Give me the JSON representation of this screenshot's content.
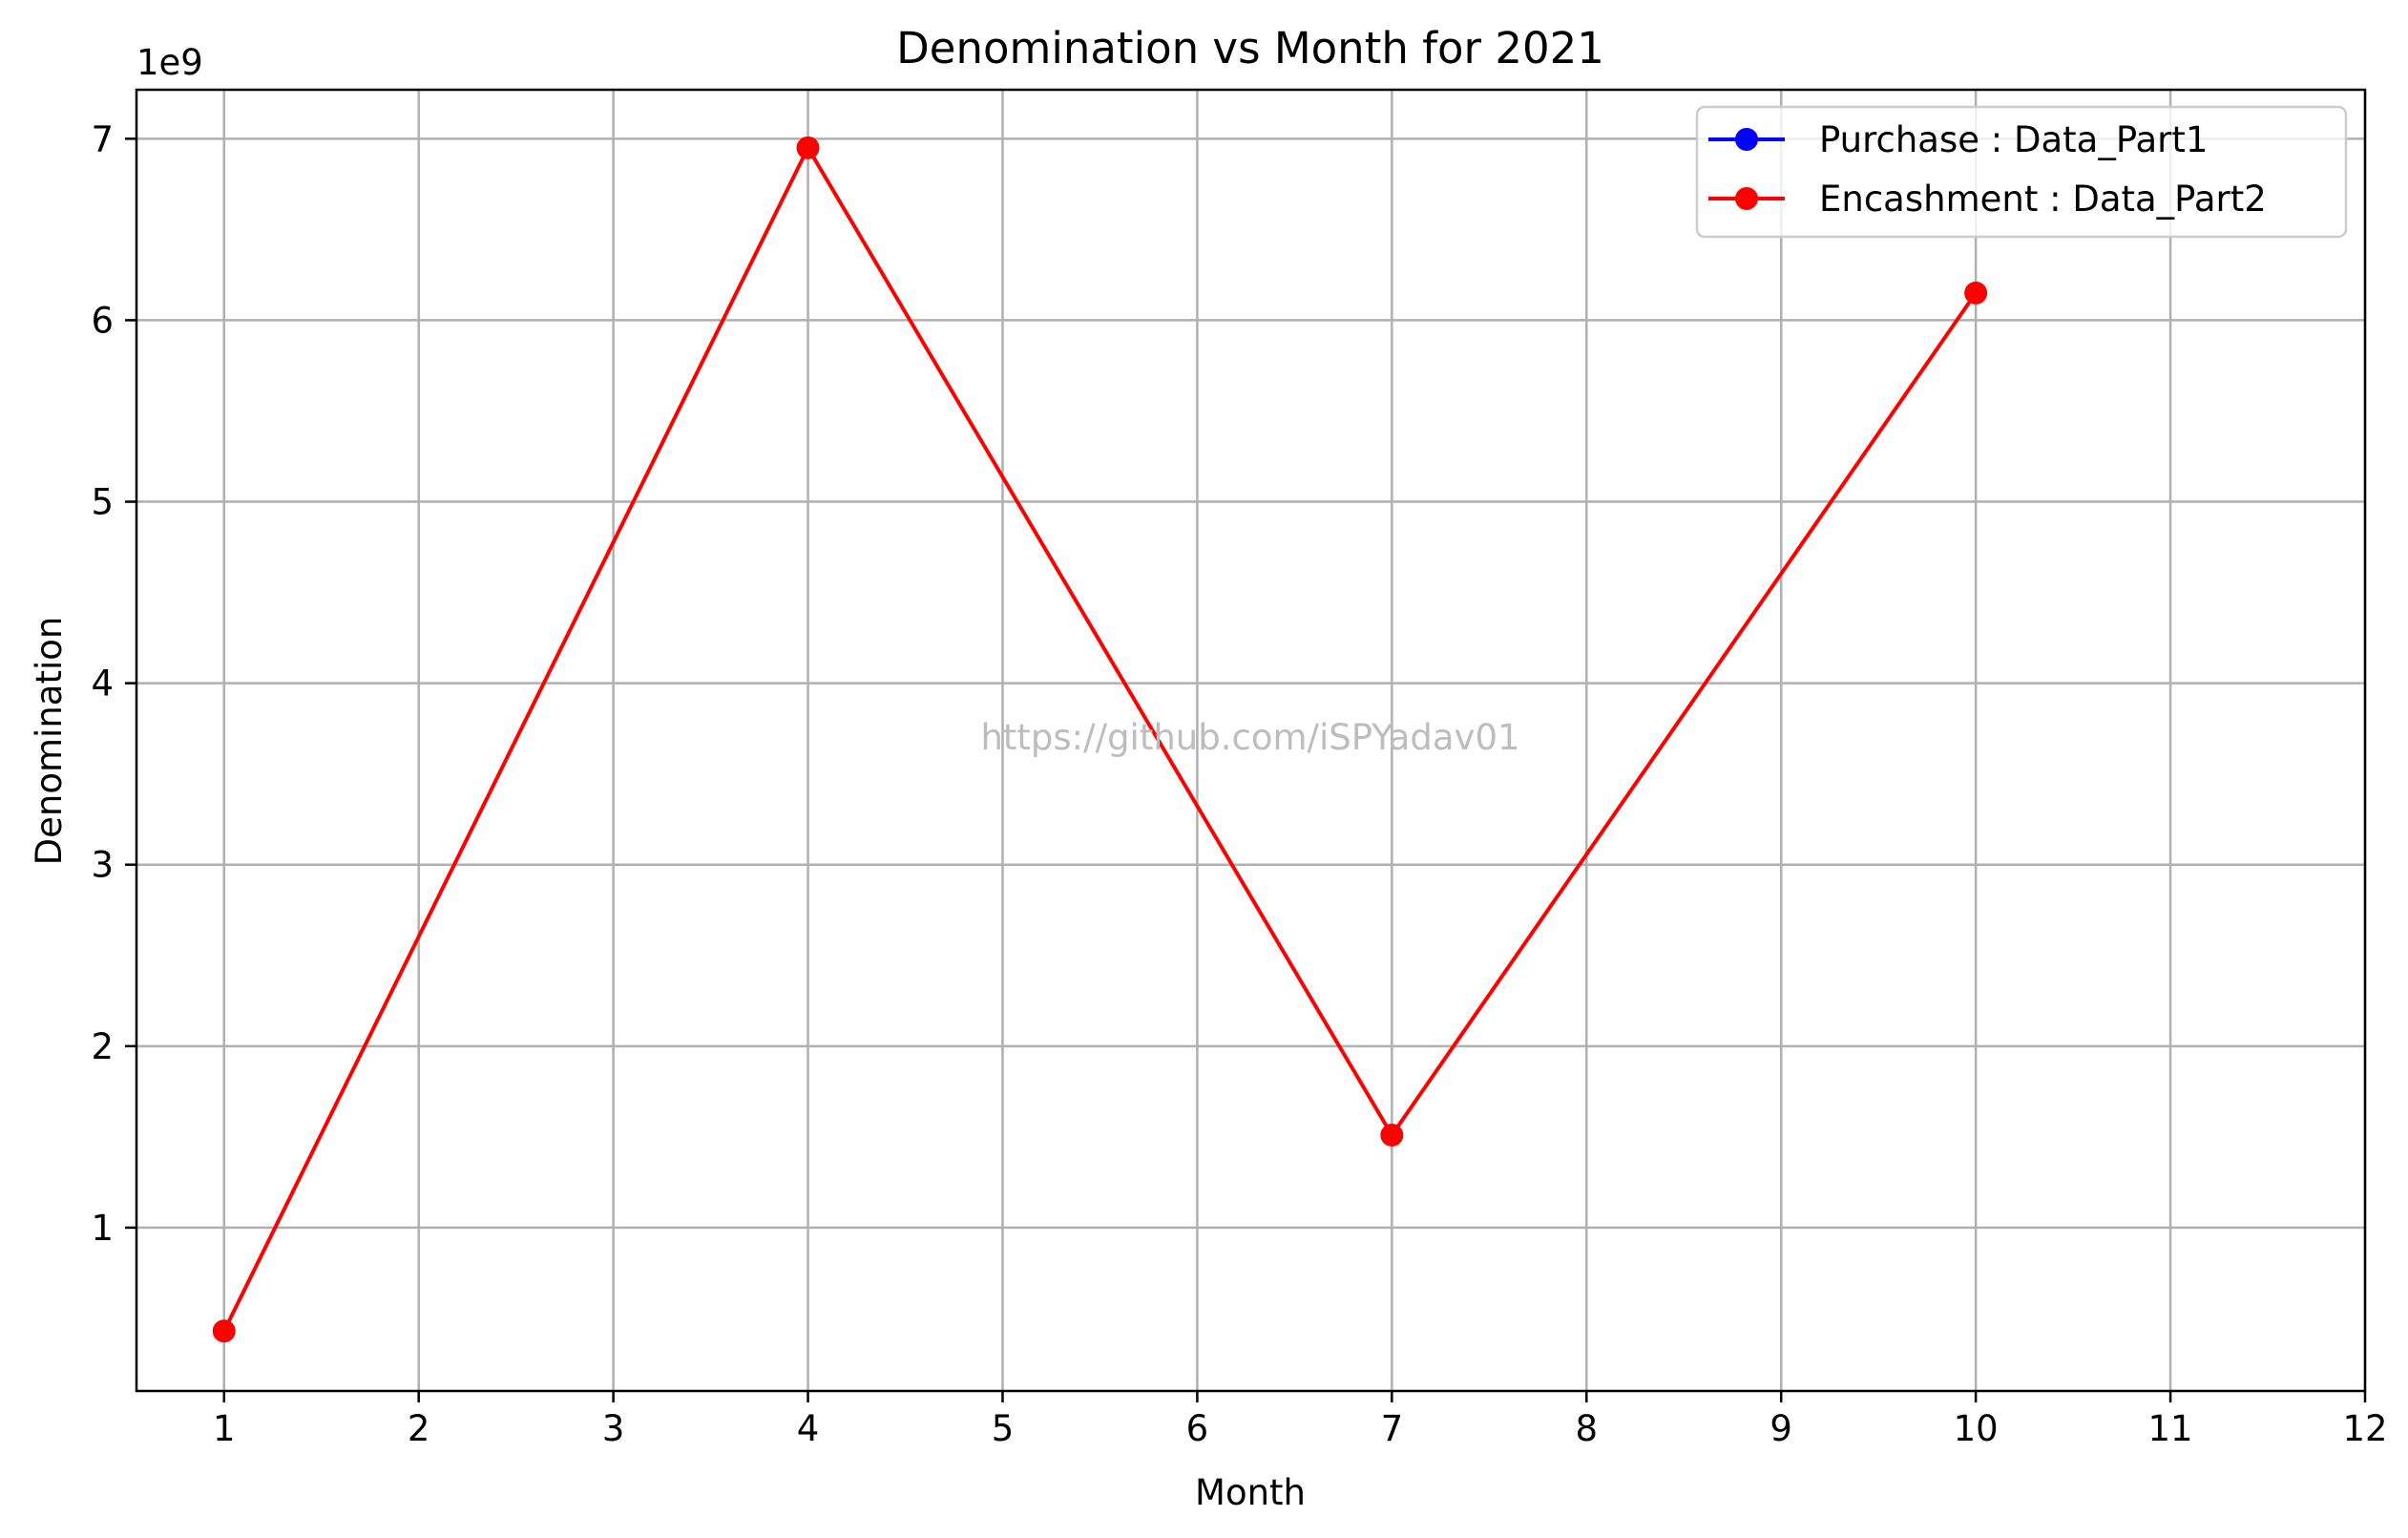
{
  "chart_data": {
    "type": "line",
    "title": "Denomination vs Month for 2021",
    "xlabel": "Month",
    "ylabel": "Denomination",
    "y_offset_label": "1e9",
    "y_scale_factor": 1000000000,
    "xlim": [
      0.55,
      12
    ],
    "ylim": [
      100000000,
      7270000000
    ],
    "x_ticks": [
      1,
      2,
      3,
      4,
      5,
      6,
      7,
      8,
      9,
      10,
      11,
      12
    ],
    "x_tick_labels": [
      "1",
      "2",
      "3",
      "4",
      "5",
      "6",
      "7",
      "8",
      "9",
      "10",
      "11",
      "12"
    ],
    "y_ticks": [
      1000000000,
      2000000000,
      3000000000,
      4000000000,
      5000000000,
      6000000000,
      7000000000
    ],
    "y_tick_labels": [
      "1",
      "2",
      "3",
      "4",
      "5",
      "6",
      "7"
    ],
    "grid": true,
    "legend_position": "top-right",
    "series": [
      {
        "name": "Purchase : Data_Part1",
        "color": "#0000ff",
        "marker": "circle",
        "x": [],
        "y": []
      },
      {
        "name": "Encashment : Data_Part2",
        "color": "#ff0000",
        "marker": "circle",
        "x": [
          1,
          4,
          7,
          10
        ],
        "y": [
          430000000,
          6950000000,
          1510000000,
          6150000000
        ]
      }
    ],
    "annotations": [
      "https://github.com/iSPYadav01"
    ]
  }
}
